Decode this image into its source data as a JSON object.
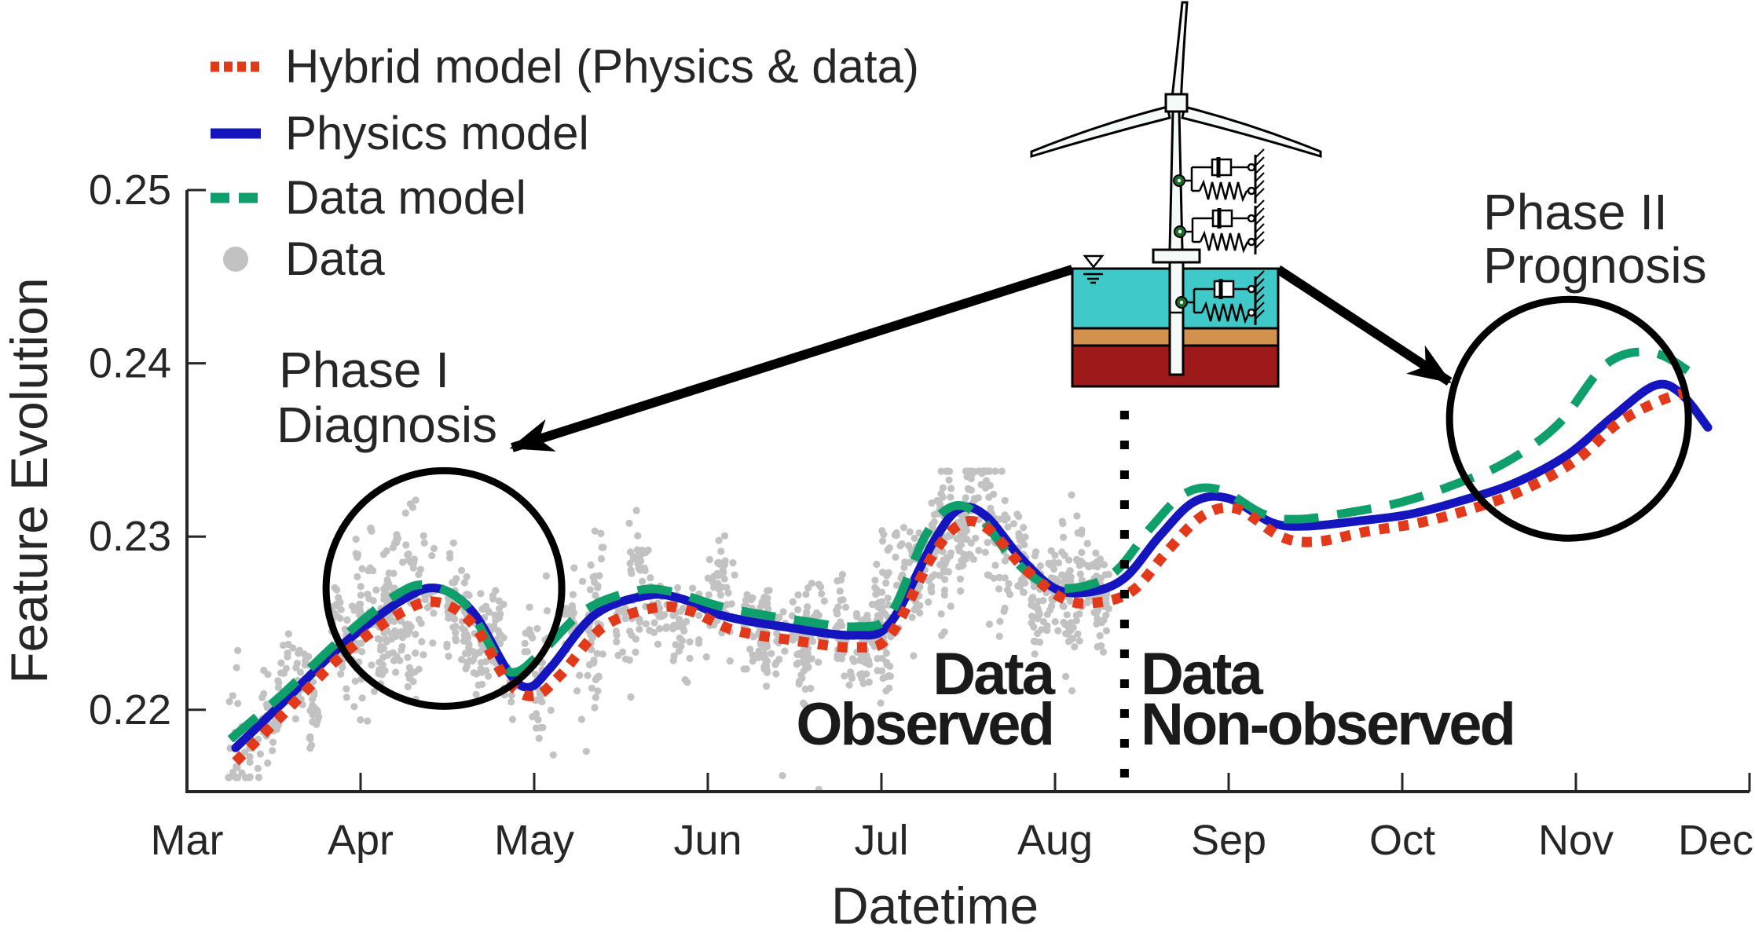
{
  "page": {
    "background": "#ffffff"
  },
  "legend": {
    "items": [
      {
        "label": "Hybrid model (Physics & data)",
        "line_style": "dotted",
        "color": "#e2391b"
      },
      {
        "label": "Physics model",
        "line_style": "solid",
        "color": "#1515c0"
      },
      {
        "label": "Data model",
        "line_style": "dashed",
        "color": "#0e9f6a"
      },
      {
        "label": "Data",
        "line_style": "scatter-dot",
        "color": "#c2c2c2"
      }
    ]
  },
  "annotations": {
    "phase1": {
      "line1": "Phase I",
      "line2": "Diagnosis"
    },
    "phase2": {
      "line1": "Phase II",
      "line2": "Prognosis"
    },
    "observed": {
      "line1": "Data",
      "line2": "Observed"
    },
    "non_observed": {
      "line1": "Data",
      "line2": "Non-observed"
    }
  },
  "illustration": {
    "name": "offshore-wind-turbine-with-spring-damper-foundation",
    "water_color": "#3fc9c9",
    "sand_color": "#d2914c",
    "rock_color": "#9e1a1a"
  },
  "chart_data": {
    "type": "line+scatter",
    "title": "",
    "xlabel": "Datetime",
    "ylabel": "Feature Evolution",
    "x_categories": [
      "Mar",
      "Apr",
      "May",
      "Jun",
      "Jul",
      "Aug",
      "Sep",
      "Oct",
      "Nov",
      "Dec"
    ],
    "yticks": [
      0.25,
      0.24,
      0.23,
      0.22
    ],
    "ylim": [
      0.215,
      0.25
    ],
    "grid": false,
    "legend_position": "top-left",
    "separator_month": 5.4,
    "phase1_circle": {
      "month": 1.48,
      "value": 0.227,
      "radius_px": 150
    },
    "phase2_circle": {
      "month": 7.96,
      "value": 0.2368,
      "radius_px": 152
    },
    "arrows": [
      {
        "from": [
          1365,
          343
        ],
        "to": [
          652,
          570
        ]
      },
      {
        "from": [
          1627,
          343
        ],
        "to": [
          1845,
          486
        ]
      }
    ],
    "series": [
      {
        "name": "Physics model",
        "color": "#1515c0",
        "style": "solid",
        "width": 11,
        "points": [
          [
            0.28,
            0.2178
          ],
          [
            0.55,
            0.2204
          ],
          [
            0.9,
            0.2238
          ],
          [
            1.25,
            0.2264
          ],
          [
            1.45,
            0.227
          ],
          [
            1.65,
            0.2256
          ],
          [
            1.85,
            0.2222
          ],
          [
            1.97,
            0.2213
          ],
          [
            2.1,
            0.2225
          ],
          [
            2.35,
            0.2255
          ],
          [
            2.65,
            0.2266
          ],
          [
            2.85,
            0.2264
          ],
          [
            3.1,
            0.2254
          ],
          [
            3.5,
            0.2247
          ],
          [
            3.85,
            0.2243
          ],
          [
            4.05,
            0.225
          ],
          [
            4.3,
            0.2297
          ],
          [
            4.45,
            0.2316
          ],
          [
            4.6,
            0.2312
          ],
          [
            4.8,
            0.2288
          ],
          [
            5.0,
            0.227
          ],
          [
            5.2,
            0.2268
          ],
          [
            5.4,
            0.2276
          ],
          [
            5.6,
            0.23
          ],
          [
            5.8,
            0.232
          ],
          [
            6.0,
            0.2322
          ],
          [
            6.25,
            0.2308
          ],
          [
            6.45,
            0.2306
          ],
          [
            6.75,
            0.2309
          ],
          [
            7.05,
            0.2313
          ],
          [
            7.35,
            0.2321
          ],
          [
            7.65,
            0.2331
          ],
          [
            7.95,
            0.2347
          ],
          [
            8.2,
            0.2368
          ],
          [
            8.45,
            0.2387
          ],
          [
            8.6,
            0.2383
          ],
          [
            8.76,
            0.2363
          ]
        ]
      },
      {
        "name": "Data model",
        "color": "#0e9f6a",
        "style": "dashed",
        "width": 11,
        "points": [
          [
            0.25,
            0.2183
          ],
          [
            0.55,
            0.2209
          ],
          [
            0.9,
            0.2242
          ],
          [
            1.2,
            0.2266
          ],
          [
            1.38,
            0.2272
          ],
          [
            1.6,
            0.2261
          ],
          [
            1.8,
            0.2228
          ],
          [
            1.9,
            0.2222
          ],
          [
            2.05,
            0.2234
          ],
          [
            2.3,
            0.2258
          ],
          [
            2.6,
            0.2269
          ],
          [
            2.8,
            0.2268
          ],
          [
            3.1,
            0.2259
          ],
          [
            3.5,
            0.2252
          ],
          [
            3.85,
            0.2248
          ],
          [
            4.05,
            0.2255
          ],
          [
            4.25,
            0.23
          ],
          [
            4.4,
            0.2317
          ],
          [
            4.55,
            0.2313
          ],
          [
            4.75,
            0.2288
          ],
          [
            4.95,
            0.2272
          ],
          [
            5.15,
            0.2271
          ],
          [
            5.35,
            0.228
          ],
          [
            5.55,
            0.2305
          ],
          [
            5.75,
            0.2325
          ],
          [
            5.95,
            0.2327
          ],
          [
            6.2,
            0.2313
          ],
          [
            6.4,
            0.231
          ],
          [
            6.7,
            0.2314
          ],
          [
            7.0,
            0.232
          ],
          [
            7.3,
            0.233
          ],
          [
            7.6,
            0.2343
          ],
          [
            7.9,
            0.2365
          ],
          [
            8.18,
            0.24
          ],
          [
            8.45,
            0.2406
          ],
          [
            8.7,
            0.2392
          ]
        ]
      },
      {
        "name": "Hybrid model (Physics & data)",
        "color": "#e2391b",
        "style": "dotted",
        "width": 13,
        "points": [
          [
            0.28,
            0.217
          ],
          [
            0.55,
            0.2197
          ],
          [
            0.9,
            0.2232
          ],
          [
            1.25,
            0.2257
          ],
          [
            1.45,
            0.2262
          ],
          [
            1.65,
            0.2249
          ],
          [
            1.85,
            0.2216
          ],
          [
            2.0,
            0.2208
          ],
          [
            2.15,
            0.222
          ],
          [
            2.4,
            0.2248
          ],
          [
            2.7,
            0.2259
          ],
          [
            2.9,
            0.2257
          ],
          [
            3.15,
            0.2246
          ],
          [
            3.5,
            0.224
          ],
          [
            3.85,
            0.2236
          ],
          [
            4.05,
            0.2243
          ],
          [
            4.3,
            0.229
          ],
          [
            4.47,
            0.2308
          ],
          [
            4.62,
            0.2304
          ],
          [
            4.82,
            0.2282
          ],
          [
            5.05,
            0.2264
          ],
          [
            5.25,
            0.2262
          ],
          [
            5.45,
            0.2269
          ],
          [
            5.65,
            0.2292
          ],
          [
            5.85,
            0.2312
          ],
          [
            6.05,
            0.2316
          ],
          [
            6.3,
            0.23
          ],
          [
            6.5,
            0.2297
          ],
          [
            6.8,
            0.2303
          ],
          [
            7.1,
            0.2308
          ],
          [
            7.4,
            0.2316
          ],
          [
            7.7,
            0.2327
          ],
          [
            8.0,
            0.2344
          ],
          [
            8.25,
            0.2366
          ],
          [
            8.5,
            0.2379
          ],
          [
            8.68,
            0.2384
          ]
        ]
      }
    ],
    "scatter": {
      "name": "Data",
      "color": "#c2c2c2",
      "dot_radius": 4.6,
      "generated_noise_around_series": "Physics model",
      "seed": 20,
      "clusters": 86,
      "x_range_months": [
        0.2,
        5.36
      ],
      "sigma_value": 0.00135,
      "cluster_sigma": 0.00115,
      "outliers": [
        [
          3.43,
          0.2162
        ],
        [
          3.64,
          0.2154
        ],
        [
          2.11,
          0.2174
        ],
        [
          2.3,
          0.2176
        ]
      ]
    }
  }
}
